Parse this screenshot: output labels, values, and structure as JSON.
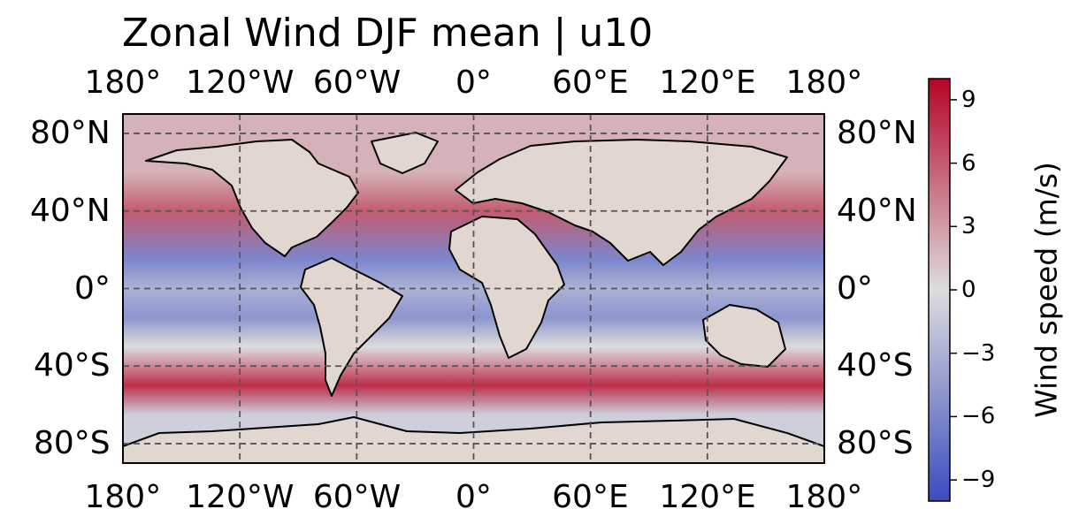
{
  "title": "Zonal Wind DJF mean | u10",
  "map": {
    "projection": "plate-carree",
    "lon_range": [
      -180,
      180
    ],
    "lat_range": [
      -90,
      90
    ],
    "gridlines": true,
    "coastlines": true,
    "lon_ticks": [
      -180,
      -120,
      -60,
      0,
      60,
      120,
      180
    ],
    "lat_ticks": [
      80,
      40,
      0,
      -40,
      -80
    ],
    "lon_tick_labels": [
      "180°",
      "120°W",
      "60°W",
      "0°",
      "60°E",
      "120°E",
      "180°"
    ],
    "lat_tick_labels": [
      "80°N",
      "40°N",
      "0°",
      "40°S",
      "80°S"
    ],
    "field_bands": [
      {
        "lat": 60,
        "u": 2
      },
      {
        "lat": 40,
        "u": 6
      },
      {
        "lat": 15,
        "u": -6
      },
      {
        "lat": 0,
        "u": -3
      },
      {
        "lat": -15,
        "u": -5
      },
      {
        "lat": -30,
        "u": 0
      },
      {
        "lat": -50,
        "u": 8
      },
      {
        "lat": -65,
        "u": -1
      }
    ]
  },
  "colorbar": {
    "label": "Wind speed (m/s)",
    "vmin": -10,
    "vmax": 10,
    "cmap": "coolwarm",
    "ticks": [
      9,
      6,
      3,
      0,
      -3,
      -6,
      -9
    ],
    "tick_labels": [
      "9",
      "6",
      "3",
      "0",
      "−3",
      "−6",
      "−9"
    ]
  },
  "colors": {
    "min": "#3b4cc0",
    "mid": "#dddddd",
    "max": "#b40426",
    "grid": "#555555",
    "coast": "#000000"
  }
}
